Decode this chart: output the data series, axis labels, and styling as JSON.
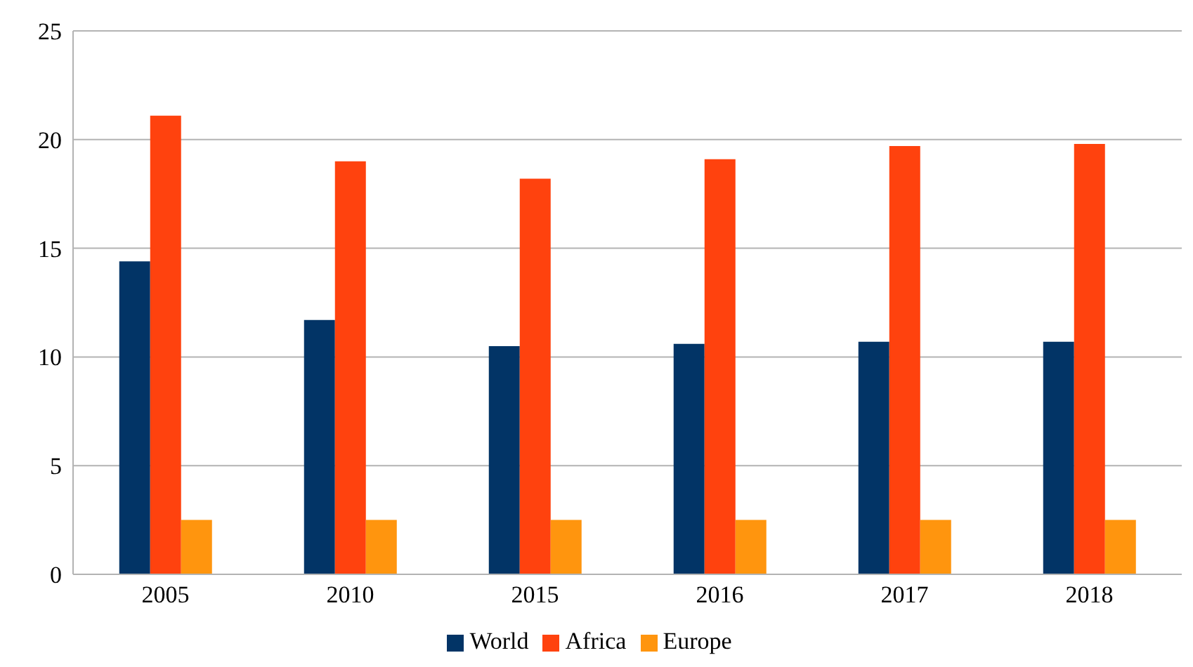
{
  "chart_data": {
    "type": "bar",
    "categories": [
      "2005",
      "2010",
      "2015",
      "2016",
      "2017",
      "2018"
    ],
    "series": [
      {
        "name": "World",
        "color": "#023466",
        "values": [
          14.4,
          11.7,
          10.5,
          10.6,
          10.7,
          10.7
        ]
      },
      {
        "name": "Africa",
        "color": "#ff420e",
        "values": [
          21.1,
          19.0,
          18.2,
          19.1,
          19.7,
          19.8
        ]
      },
      {
        "name": "Europe",
        "color": "#ff950e",
        "values": [
          2.5,
          2.5,
          2.5,
          2.5,
          2.5,
          2.5
        ]
      }
    ],
    "ylim": [
      0,
      25
    ],
    "yticks": [
      0,
      5,
      10,
      15,
      20,
      25
    ],
    "grid": "y",
    "legend": "bottom"
  }
}
